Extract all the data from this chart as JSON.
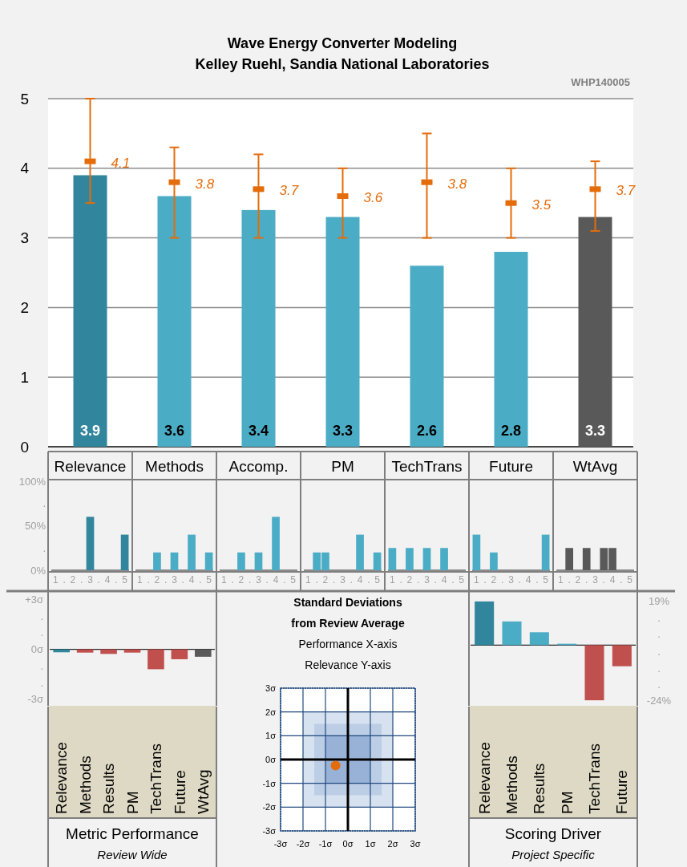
{
  "chart_data": [
    {
      "type": "bar",
      "title": "Wave Energy Converter Modeling",
      "subtitle": "Kelley Ruehl, Sandia National Laboratories",
      "annotations": [
        "WHP140005"
      ],
      "categories": [
        "Relevance",
        "Methods",
        "Accomp.",
        "PM",
        "TechTrans",
        "Future",
        "WtAvg"
      ],
      "ylim": [
        0,
        5
      ],
      "yticks": [
        0,
        1,
        2,
        3,
        4,
        5
      ],
      "grid": "y",
      "series": [
        {
          "type": "bar",
          "colors": [
            "#31859c",
            "#4bacc6",
            "#4bacc6",
            "#4bacc6",
            "#4bacc6",
            "#4bacc6",
            "#595959"
          ],
          "values": [
            3.9,
            3.6,
            3.4,
            3.3,
            2.6,
            2.8,
            3.3
          ],
          "value_labels": [
            "3.9",
            "3.6",
            "3.4",
            "3.3",
            "2.6",
            "2.8",
            "3.3"
          ]
        },
        {
          "type": "scatter",
          "marker": "square",
          "color": "#e46c0a",
          "x": [
            "Relevance",
            "Methods",
            "Accomp.",
            "PM",
            "TechTrans",
            "Future",
            "WtAvg"
          ],
          "values": [
            4.1,
            3.8,
            3.7,
            3.6,
            3.8,
            3.5,
            3.7
          ],
          "value_labels": [
            "4.1",
            "3.8",
            "3.7",
            "3.6",
            "3.8",
            "3.5",
            "3.7"
          ],
          "errors": [
            [
              3.5,
              5
            ],
            [
              3,
              4.3
            ],
            [
              3,
              4.2
            ],
            [
              3,
              4
            ],
            [
              3,
              4.5
            ],
            [
              3,
              4
            ],
            [
              3.1,
              4.1
            ]
          ]
        }
      ]
    },
    {
      "type": "bar",
      "categories": [
        "1",
        ".",
        "2",
        ".",
        "3",
        ".",
        "4",
        ".",
        "5"
      ],
      "values": [
        null,
        null,
        null,
        null,
        60,
        null,
        null,
        null,
        40
      ],
      "color": "#31859c",
      "ylim": [
        0,
        100
      ],
      "yticks": [
        {
          "value": 0,
          "label": "0%"
        },
        {
          "value": 25,
          "label": "."
        },
        {
          "value": 50,
          "label": "50%"
        },
        {
          "value": 75,
          "label": "."
        },
        {
          "value": 100,
          "label": "100%"
        }
      ]
    },
    {
      "type": "bar",
      "categories": [
        "1",
        ".",
        "2",
        ".",
        "3",
        ".",
        "4",
        ".",
        "5"
      ],
      "values": [
        null,
        null,
        20,
        null,
        20,
        null,
        40,
        null,
        20
      ],
      "color": "#4bacc6",
      "ylim": [
        0,
        100
      ],
      "yticks": [
        0,
        50,
        100
      ],
      "tick_labels": "x"
    },
    {
      "type": "bar",
      "categories": [
        "1",
        ".",
        "2",
        ".",
        "3",
        ".",
        "4",
        ".",
        "5"
      ],
      "values": [
        null,
        null,
        20,
        null,
        20,
        null,
        60,
        null,
        null
      ],
      "color": "#4bacc6",
      "ylim": [
        0,
        100
      ],
      "yticks": [
        0,
        50,
        100
      ],
      "tick_labels": "x"
    },
    {
      "type": "bar",
      "categories": [
        "1",
        ".",
        "2",
        ".",
        "3",
        ".",
        "4",
        ".",
        "5"
      ],
      "values": [
        null,
        20,
        20,
        null,
        null,
        null,
        40,
        null,
        20
      ],
      "color": "#4bacc6",
      "ylim": [
        0,
        100
      ],
      "yticks": [
        0,
        50,
        100
      ],
      "tick_labels": "x"
    },
    {
      "type": "bar",
      "categories": [
        "1",
        ".",
        "2",
        ".",
        "3",
        ".",
        "4",
        ".",
        "5"
      ],
      "values": [
        25,
        null,
        25,
        null,
        25,
        null,
        25,
        null,
        null
      ],
      "color": "#4bacc6",
      "ylim": [
        0,
        100
      ],
      "yticks": [
        0,
        50,
        100
      ],
      "tick_labels": "x"
    },
    {
      "type": "bar",
      "categories": [
        "1",
        ".",
        "2",
        ".",
        "3",
        ".",
        "4",
        ".",
        "5"
      ],
      "values": [
        40,
        null,
        20,
        null,
        null,
        null,
        null,
        null,
        40
      ],
      "color": "#4bacc6",
      "ylim": [
        0,
        100
      ],
      "yticks": [
        0,
        50,
        100
      ],
      "tick_labels": "x"
    },
    {
      "type": "bar",
      "categories": [
        "1",
        ".",
        "2",
        ".",
        "3",
        ".",
        "4",
        ".",
        "5"
      ],
      "values": [
        null,
        25,
        null,
        25,
        null,
        25,
        25,
        null,
        null
      ],
      "color": "#595959",
      "ylim": [
        0,
        100
      ],
      "yticks": [
        0,
        50,
        100
      ],
      "tick_labels": "x"
    },
    {
      "type": "bar",
      "title": "Metric Performance",
      "subtitle": "Review Wide",
      "categories": [
        "Relevance",
        "Methods",
        "Results",
        "PM",
        "TechTrans",
        "Future",
        "WtAvg"
      ],
      "values": [
        -0.18,
        -0.2,
        -0.28,
        -0.2,
        -1.2,
        -0.6,
        -0.45
      ],
      "colors": [
        "#31859c",
        "#c0504d",
        "#c0504d",
        "#c0504d",
        "#c0504d",
        "#c0504d",
        "#595959"
      ],
      "ylim": [
        -3.4,
        3.5
      ],
      "yticks": [
        {
          "value": 3,
          "label": "+3σ"
        },
        {
          "value": 2,
          "label": "."
        },
        {
          "value": 1,
          "label": "."
        },
        {
          "value": 0,
          "label": "0σ"
        },
        {
          "value": -1,
          "label": "."
        },
        {
          "value": -2,
          "label": "."
        },
        {
          "value": -3,
          "label": "-3σ"
        }
      ]
    },
    {
      "type": "scatter",
      "title": "Standard Deviations from Review Average",
      "xlabel": "Performance X-axis",
      "ylabel": "Relevance Y-axis",
      "x": [
        -0.55
      ],
      "values": [
        -0.25
      ],
      "color": "#e46c0a",
      "marker": "circle",
      "xlim": [
        -3,
        3
      ],
      "ylim": [
        -3,
        3
      ],
      "grid": true,
      "xticks": [
        {
          "value": -3,
          "label": "-3σ"
        },
        {
          "value": -2,
          "label": "-2σ"
        },
        {
          "value": -1,
          "label": "-1σ"
        },
        {
          "value": 0,
          "label": "0σ"
        },
        {
          "value": 1,
          "label": "1σ"
        },
        {
          "value": 2,
          "label": "2σ"
        },
        {
          "value": 3,
          "label": "3σ"
        }
      ],
      "yticks": [
        {
          "value": -3,
          "label": "-3σ"
        },
        {
          "value": -2,
          "label": "-2σ"
        },
        {
          "value": -1,
          "label": "-1σ"
        },
        {
          "value": 0,
          "label": "0σ"
        },
        {
          "value": 1,
          "label": "1σ"
        },
        {
          "value": 2,
          "label": "2σ"
        },
        {
          "value": 3,
          "label": "3σ"
        }
      ],
      "tick_labels": true
    },
    {
      "type": "bar",
      "title": "Scoring Driver",
      "subtitle": "Project Specific",
      "categories": [
        "Relevance",
        "Methods",
        "Results",
        "PM",
        "TechTrans",
        "Future"
      ],
      "values": [
        19,
        10.3,
        5.6,
        0.6,
        -24,
        -9.2
      ],
      "colors": [
        "#31859c",
        "#4bacc6",
        "#4bacc6",
        "#4bacc6",
        "#c0504d",
        "#c0504d"
      ],
      "ylim": [
        -26.4,
        23.5
      ],
      "yticks": [
        {
          "value": 19,
          "label": "19%"
        },
        {
          "value": 12,
          "label": "."
        },
        {
          "value": 5,
          "label": "."
        },
        {
          "value": -3,
          "label": "."
        },
        {
          "value": -10,
          "label": "."
        },
        {
          "value": -17,
          "label": "."
        },
        {
          "value": -24,
          "label": "-24%"
        }
      ]
    }
  ]
}
